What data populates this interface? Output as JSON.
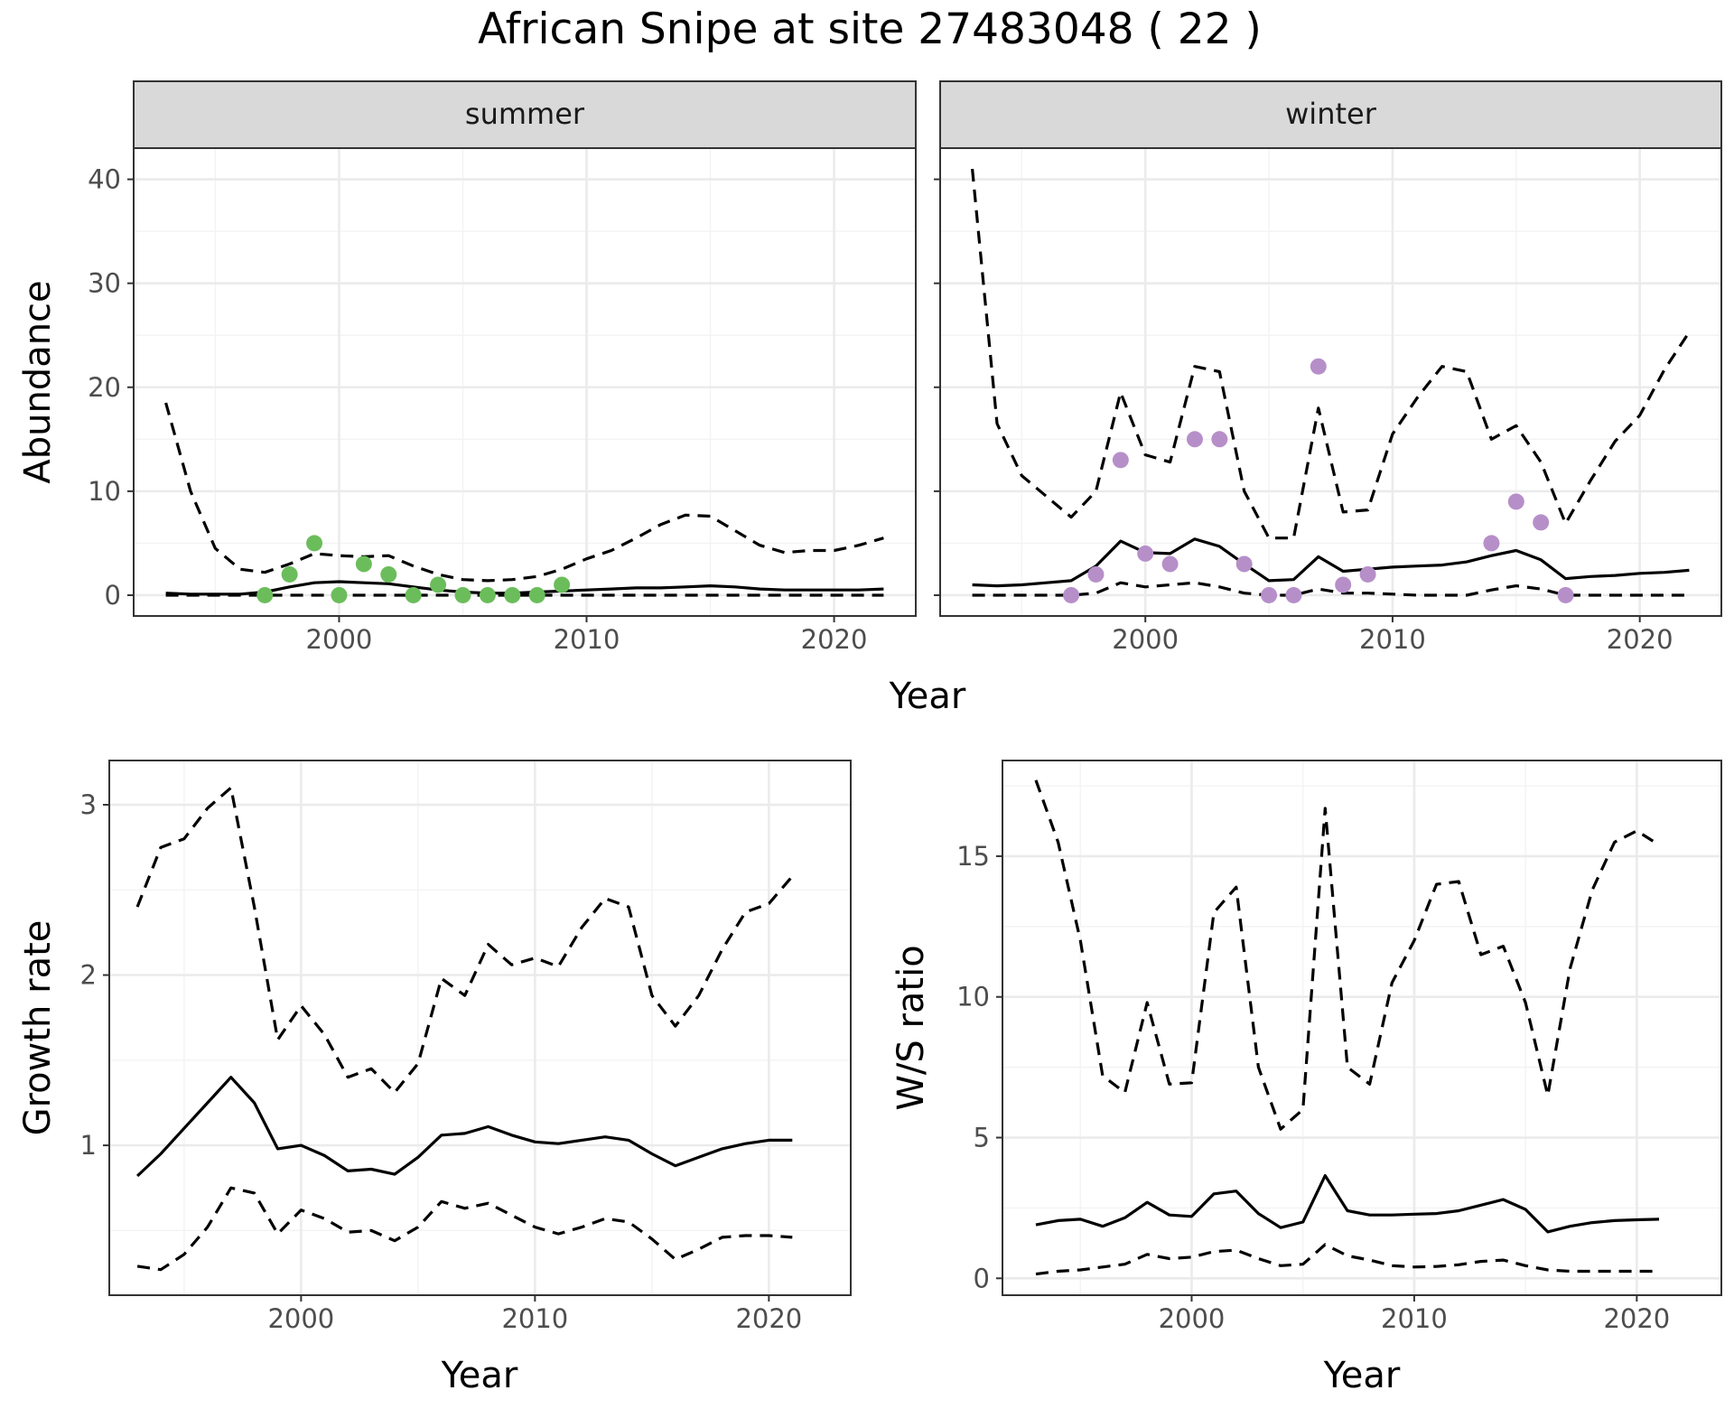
{
  "figure": {
    "title": "African Snipe at site 27483048 ( 22 )"
  },
  "chart_data": [
    {
      "id": "abundance",
      "type": "line",
      "facets": [
        "summer",
        "winter"
      ],
      "xlabel": "Year",
      "ylabel": "Abundance",
      "xlim": [
        1991.7,
        2023.3
      ],
      "ylim": [
        -2,
        43
      ],
      "xticks": [
        2000,
        2010,
        2020
      ],
      "yticks": [
        0,
        10,
        20,
        30,
        40
      ],
      "grid": true,
      "panels": [
        {
          "facet": "summer",
          "mean": {
            "x": [
              1993,
              1994,
              1995,
              1996,
              1997,
              1998,
              1999,
              2000,
              2001,
              2002,
              2003,
              2004,
              2005,
              2006,
              2007,
              2008,
              2009,
              2010,
              2011,
              2012,
              2013,
              2014,
              2015,
              2016,
              2017,
              2018,
              2019,
              2020,
              2021,
              2022
            ],
            "y": [
              0.2,
              0.1,
              0.1,
              0.1,
              0.3,
              0.8,
              1.2,
              1.3,
              1.2,
              1.1,
              0.8,
              0.5,
              0.3,
              0.2,
              0.2,
              0.3,
              0.4,
              0.5,
              0.6,
              0.7,
              0.7,
              0.8,
              0.9,
              0.8,
              0.6,
              0.5,
              0.5,
              0.5,
              0.5,
              0.6
            ]
          },
          "upper": {
            "x": [
              1993,
              1994,
              1995,
              1996,
              1997,
              1998,
              1999,
              2000,
              2001,
              2002,
              2003,
              2004,
              2005,
              2006,
              2007,
              2008,
              2009,
              2010,
              2011,
              2012,
              2013,
              2014,
              2015,
              2016,
              2017,
              2018,
              2019,
              2020,
              2021,
              2022
            ],
            "y": [
              18.5,
              10,
              4.5,
              2.5,
              2.2,
              3,
              4,
              3.8,
              3.7,
              3.8,
              2.8,
              2,
              1.5,
              1.4,
              1.5,
              1.8,
              2.5,
              3.5,
              4.3,
              5.5,
              6.8,
              7.7,
              7.6,
              6.2,
              4.8,
              4.1,
              4.3,
              4.3,
              4.8,
              5.5
            ]
          },
          "lower": {
            "x": [
              1993,
              2022
            ],
            "y": [
              0,
              0
            ]
          },
          "observed": {
            "x": [
              1997,
              1998,
              1999,
              2000,
              2001,
              2002,
              2003,
              2004,
              2005,
              2006,
              2007,
              2008,
              2009
            ],
            "y": [
              0,
              2,
              5,
              0,
              3,
              2,
              0,
              1,
              0,
              0,
              0,
              0,
              1
            ]
          },
          "point_color": "#6bbd5b"
        },
        {
          "facet": "winter",
          "mean": {
            "x": [
              1993,
              1994,
              1995,
              1996,
              1997,
              1998,
              1999,
              2000,
              2001,
              2002,
              2003,
              2004,
              2005,
              2006,
              2007,
              2008,
              2009,
              2010,
              2011,
              2012,
              2013,
              2014,
              2015,
              2016,
              2017,
              2018,
              2019,
              2020,
              2021,
              2022
            ],
            "y": [
              1,
              0.9,
              1,
              1.2,
              1.4,
              2.8,
              5.2,
              4.1,
              4,
              5.4,
              4.7,
              3,
              1.4,
              1.5,
              3.7,
              2.3,
              2.5,
              2.7,
              2.8,
              2.9,
              3.2,
              3.8,
              4.3,
              3.4,
              1.6,
              1.8,
              1.9,
              2.1,
              2.2,
              2.4
            ]
          },
          "upper": {
            "x": [
              1993,
              1994,
              1995,
              1996,
              1997,
              1998,
              1999,
              2000,
              2001,
              2002,
              2003,
              2004,
              2005,
              2006,
              2007,
              2008,
              2009,
              2010,
              2011,
              2012,
              2013,
              2014,
              2015,
              2016,
              2017,
              2018,
              2019,
              2020,
              2021,
              2022
            ],
            "y": [
              41,
              16.5,
              11.5,
              9.5,
              7.5,
              10,
              19.5,
              13.5,
              12.8,
              22,
              21.5,
              10,
              5.5,
              5.5,
              18,
              8,
              8.2,
              15.5,
              19,
              22,
              21.5,
              15,
              16.3,
              12.8,
              6.9,
              11,
              14.8,
              17.3,
              21.7,
              25.3
            ]
          },
          "lower": {
            "x": [
              1993,
              1994,
              1995,
              1996,
              1997,
              1998,
              1999,
              2000,
              2001,
              2002,
              2003,
              2004,
              2005,
              2006,
              2007,
              2008,
              2009,
              2010,
              2011,
              2012,
              2013,
              2014,
              2015,
              2016,
              2017,
              2018,
              2019,
              2020,
              2021,
              2022
            ],
            "y": [
              0,
              0,
              0,
              0,
              0,
              0.2,
              1.2,
              0.8,
              1,
              1.2,
              0.8,
              0.2,
              0,
              0,
              0.6,
              0.2,
              0.2,
              0.1,
              0,
              0,
              0,
              0.5,
              0.9,
              0.6,
              0,
              0,
              0,
              0,
              0,
              0
            ]
          },
          "observed": {
            "x": [
              1997,
              1998,
              1999,
              2000,
              2001,
              2002,
              2003,
              2004,
              2005,
              2006,
              2007,
              2008,
              2009,
              2014,
              2015,
              2016,
              2017
            ],
            "y": [
              0,
              2,
              13,
              4,
              3,
              15,
              15,
              3,
              0,
              0,
              22,
              1,
              2,
              5,
              9,
              7,
              0
            ]
          },
          "point_color": "#b68fc9"
        }
      ]
    },
    {
      "id": "growth",
      "type": "line",
      "xlabel": "Year",
      "ylabel": "Growth rate",
      "xlim": [
        1991.8,
        2023.5
      ],
      "ylim": [
        0.12,
        3.26
      ],
      "xticks": [
        2000,
        2010,
        2020
      ],
      "yticks": [
        1,
        2,
        3
      ],
      "grid": true,
      "mean": {
        "x": [
          1993,
          1994,
          1995,
          1996,
          1997,
          1998,
          1999,
          2000,
          2001,
          2002,
          2003,
          2004,
          2005,
          2006,
          2007,
          2008,
          2009,
          2010,
          2011,
          2012,
          2013,
          2014,
          2015,
          2016,
          2017,
          2018,
          2019,
          2020,
          2021
        ],
        "y": [
          0.82,
          0.95,
          1.1,
          1.25,
          1.4,
          1.25,
          0.98,
          1.0,
          0.94,
          0.85,
          0.86,
          0.83,
          0.93,
          1.06,
          1.07,
          1.11,
          1.06,
          1.02,
          1.01,
          1.03,
          1.05,
          1.03,
          0.95,
          0.88,
          0.93,
          0.98,
          1.01,
          1.03,
          1.03
        ]
      },
      "upper": {
        "x": [
          1993,
          1994,
          1995,
          1996,
          1997,
          1998,
          1999,
          2000,
          2001,
          2002,
          2003,
          2004,
          2005,
          2006,
          2007,
          2008,
          2009,
          2010,
          2011,
          2012,
          2013,
          2014,
          2015,
          2016,
          2017,
          2018,
          2019,
          2020,
          2021
        ],
        "y": [
          2.4,
          2.75,
          2.8,
          2.98,
          3.1,
          2.4,
          1.62,
          1.82,
          1.65,
          1.4,
          1.45,
          1.31,
          1.48,
          1.98,
          1.88,
          2.18,
          2.06,
          2.1,
          2.05,
          2.28,
          2.45,
          2.4,
          1.88,
          1.7,
          1.88,
          2.15,
          2.37,
          2.42,
          2.58
        ]
      },
      "lower": {
        "x": [
          1993,
          1994,
          1995,
          1996,
          1997,
          1998,
          1999,
          2000,
          2001,
          2002,
          2003,
          2004,
          2005,
          2006,
          2007,
          2008,
          2009,
          2010,
          2011,
          2012,
          2013,
          2014,
          2015,
          2016,
          2017,
          2018,
          2019,
          2020,
          2021
        ],
        "y": [
          0.29,
          0.27,
          0.36,
          0.52,
          0.75,
          0.72,
          0.48,
          0.62,
          0.57,
          0.49,
          0.5,
          0.44,
          0.52,
          0.67,
          0.63,
          0.66,
          0.59,
          0.52,
          0.48,
          0.52,
          0.57,
          0.55,
          0.45,
          0.33,
          0.39,
          0.46,
          0.47,
          0.47,
          0.46
        ]
      }
    },
    {
      "id": "ratio",
      "type": "line",
      "xlabel": "Year",
      "ylabel": "W/S ratio",
      "xlim": [
        1991.5,
        2023.8
      ],
      "ylim": [
        -0.6,
        18.4
      ],
      "xticks": [
        2000,
        2010,
        2020
      ],
      "yticks": [
        0,
        5,
        10,
        15
      ],
      "grid": true,
      "mean": {
        "x": [
          1993,
          1994,
          1995,
          1996,
          1997,
          1998,
          1999,
          2000,
          2001,
          2002,
          2003,
          2004,
          2005,
          2006,
          2007,
          2008,
          2009,
          2010,
          2011,
          2012,
          2013,
          2014,
          2015,
          2016,
          2017,
          2018,
          2019,
          2020,
          2021
        ],
        "y": [
          1.9,
          2.05,
          2.1,
          1.85,
          2.15,
          2.7,
          2.25,
          2.2,
          3.0,
          3.1,
          2.3,
          1.8,
          2.0,
          3.65,
          2.4,
          2.25,
          2.25,
          2.28,
          2.3,
          2.4,
          2.6,
          2.8,
          2.45,
          1.65,
          1.85,
          1.98,
          2.05,
          2.08,
          2.1
        ]
      },
      "upper": {
        "x": [
          1993,
          1994,
          1995,
          1996,
          1997,
          1998,
          1999,
          2000,
          2001,
          2002,
          2003,
          2004,
          2005,
          2006,
          2007,
          2008,
          2009,
          2010,
          2011,
          2012,
          2013,
          2014,
          2015,
          2016,
          2017,
          2018,
          2019,
          2020,
          2021
        ],
        "y": [
          17.7,
          15.5,
          12,
          7.2,
          6.6,
          9.8,
          6.9,
          6.95,
          13,
          13.9,
          7.5,
          5.3,
          6,
          16.7,
          7.5,
          6.9,
          10.5,
          12,
          14,
          14.1,
          11.5,
          11.8,
          9.8,
          6.5,
          11,
          13.8,
          15.5,
          15.9,
          15.4
        ]
      },
      "lower": {
        "x": [
          1993,
          1994,
          1995,
          1996,
          1997,
          1998,
          1999,
          2000,
          2001,
          2002,
          2003,
          2004,
          2005,
          2006,
          2007,
          2008,
          2009,
          2010,
          2011,
          2012,
          2013,
          2014,
          2015,
          2016,
          2017,
          2018,
          2019,
          2020,
          2021
        ],
        "y": [
          0.15,
          0.25,
          0.3,
          0.4,
          0.5,
          0.85,
          0.7,
          0.75,
          0.95,
          1.0,
          0.7,
          0.45,
          0.5,
          1.2,
          0.8,
          0.65,
          0.45,
          0.4,
          0.42,
          0.48,
          0.6,
          0.65,
          0.45,
          0.3,
          0.25,
          0.25,
          0.25,
          0.25,
          0.25
        ]
      }
    }
  ]
}
